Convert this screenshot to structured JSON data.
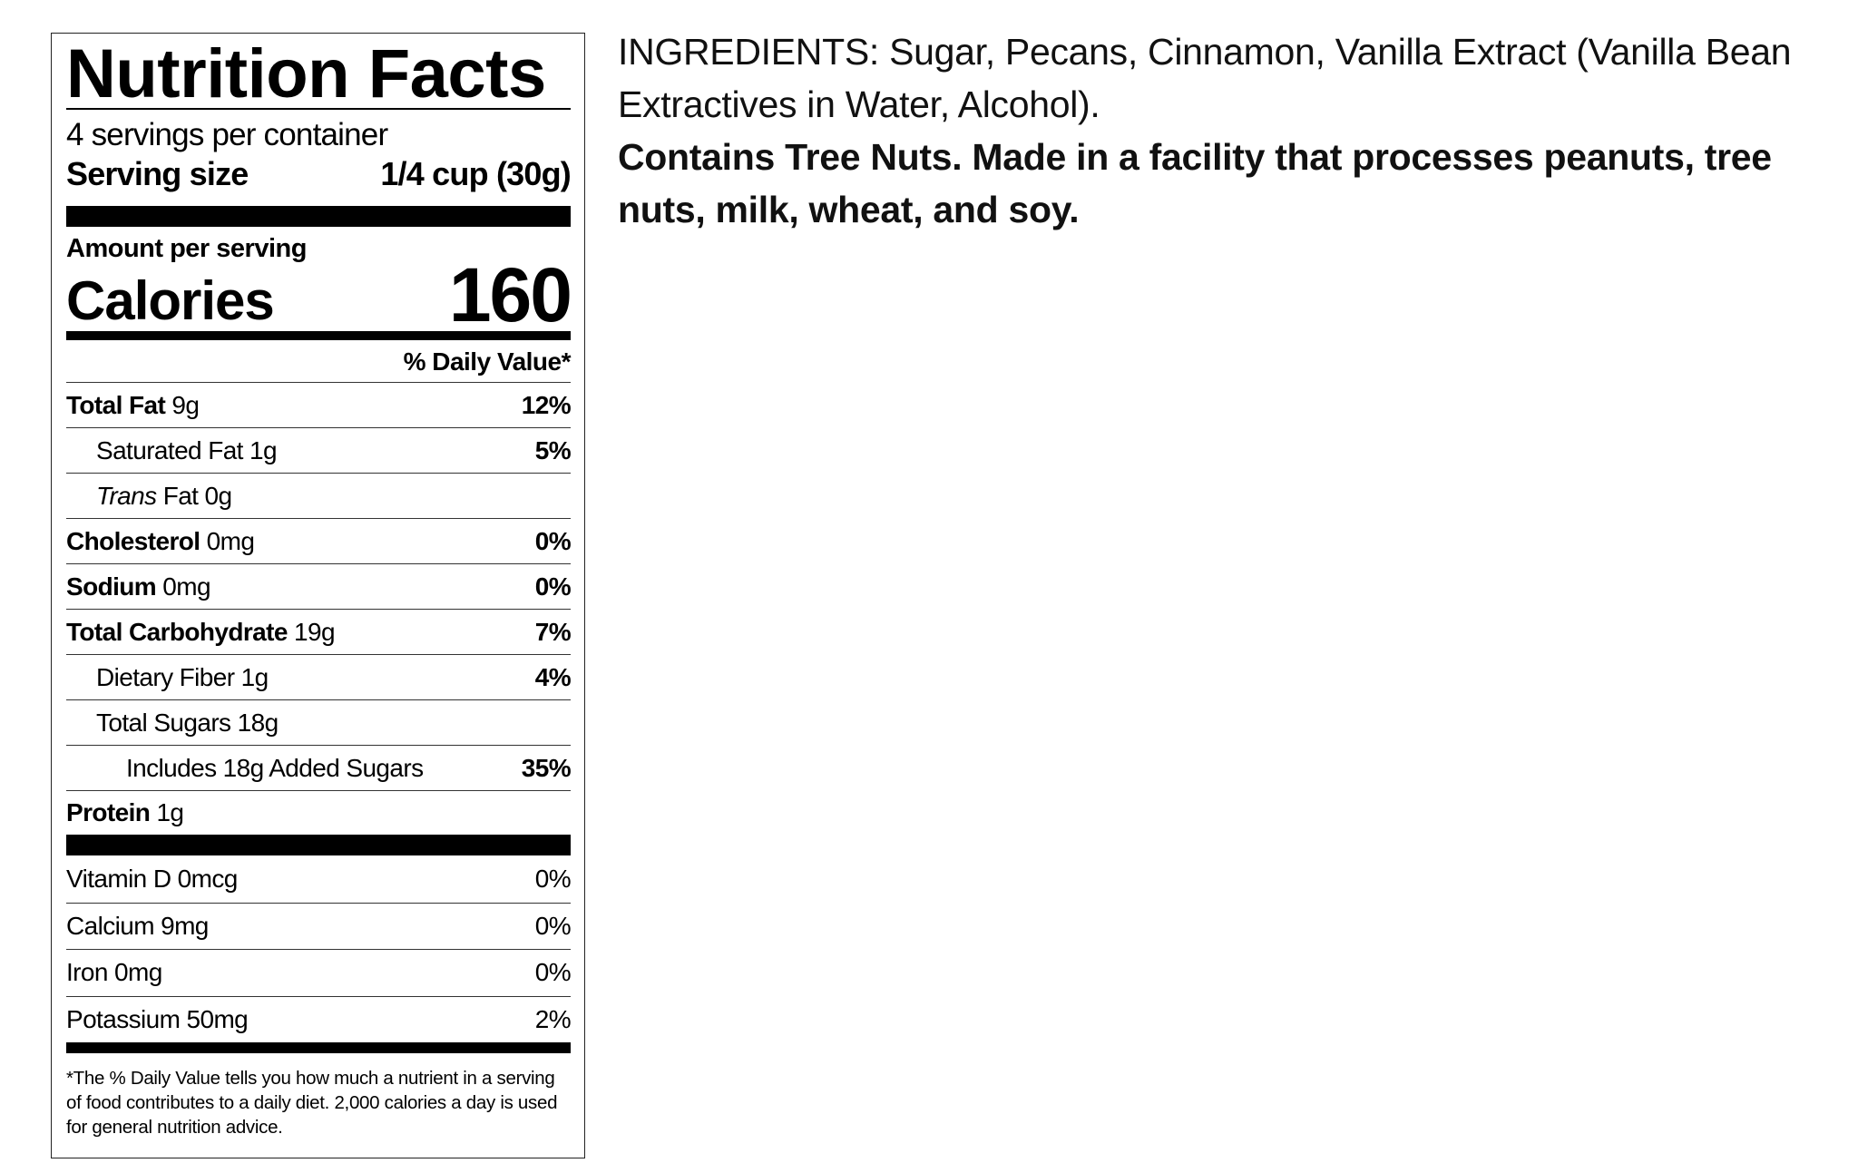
{
  "label": {
    "title": "Nutrition Facts",
    "servings_per_container": "4 servings per container",
    "serving_size_label": "Serving size",
    "serving_size_value": "1/4 cup (30g)",
    "amount_per_serving": "Amount per serving",
    "calories_label": "Calories",
    "calories_value": "160",
    "daily_value_header": "% Daily Value*",
    "nutrients": [
      {
        "name": "Total Fat",
        "amount": "9g",
        "dv": "12%"
      },
      {
        "name": "Saturated Fat",
        "amount": "1g",
        "dv": "5%"
      },
      {
        "name_italic": "Trans",
        "name": "Fat",
        "amount": "0g",
        "dv": ""
      },
      {
        "name": "Cholesterol",
        "amount": "0mg",
        "dv": "0%"
      },
      {
        "name": "Sodium",
        "amount": "0mg",
        "dv": "0%"
      },
      {
        "name": "Total Carbohydrate",
        "amount": "19g",
        "dv": "7%"
      },
      {
        "name": "Dietary Fiber",
        "amount": "1g",
        "dv": "4%"
      },
      {
        "name": "Total Sugars",
        "amount": "18g",
        "dv": ""
      },
      {
        "name": "Includes 18g Added Sugars",
        "amount": "",
        "dv": "35%"
      },
      {
        "name": "Protein",
        "amount": "1g",
        "dv": ""
      }
    ],
    "vitamins": [
      {
        "name": "Vitamin D 0mcg",
        "dv": "0%"
      },
      {
        "name": "Calcium 9mg",
        "dv": "0%"
      },
      {
        "name": "Iron 0mg",
        "dv": "0%"
      },
      {
        "name": "Potassium 50mg",
        "dv": "2%"
      }
    ],
    "footnote": "*The % Daily Value tells you how much a nutrient in a serving of food contributes to a daily diet. 2,000 calories a day is used for general nutrition advice."
  },
  "ingredients": {
    "text": "INGREDIENTS: Sugar, Pecans, Cinnamon, Vanilla Extract (Vanilla Bean Extractives in Water, Alcohol).",
    "allergen": "Contains Tree Nuts. Made in a facility that processes peanuts, tree nuts, milk, wheat, and soy."
  }
}
